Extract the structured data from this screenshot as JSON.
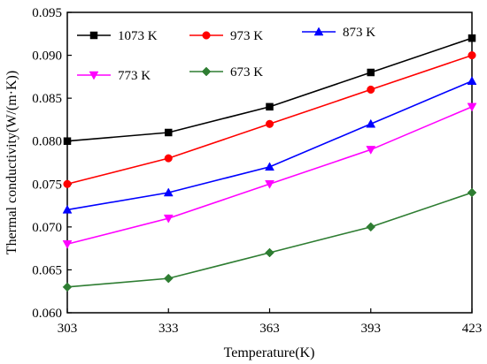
{
  "chart_data": {
    "type": "line",
    "xlabel": "Temperature(K)",
    "ylabel": "Thermal conductivity(W/(m·K))",
    "x": [
      303,
      333,
      363,
      393,
      423
    ],
    "xticks": [
      "303",
      "333",
      "363",
      "393",
      "423"
    ],
    "xlim": [
      303,
      423
    ],
    "yticks": [
      "0.060",
      "0.065",
      "0.070",
      "0.075",
      "0.080",
      "0.085",
      "0.090",
      "0.095"
    ],
    "ylim": [
      0.06,
      0.095
    ],
    "grid": false,
    "legend_position": "top",
    "series": [
      {
        "name": "1073 K",
        "color": "#000000",
        "marker": "square",
        "values": [
          0.08,
          0.081,
          0.084,
          0.088,
          0.092
        ]
      },
      {
        "name": "973 K",
        "color": "#ff0000",
        "marker": "circle",
        "values": [
          0.075,
          0.078,
          0.082,
          0.086,
          0.09
        ]
      },
      {
        "name": "873 K",
        "color": "#0000ff",
        "marker": "triangle-up",
        "values": [
          0.072,
          0.074,
          0.077,
          0.082,
          0.087
        ]
      },
      {
        "name": "773 K",
        "color": "#ff00ff",
        "marker": "triangle-down",
        "values": [
          0.068,
          0.071,
          0.075,
          0.079,
          0.084
        ]
      },
      {
        "name": "673 K",
        "color": "#2e7d32",
        "marker": "diamond",
        "values": [
          0.063,
          0.064,
          0.067,
          0.07,
          0.074
        ]
      }
    ]
  }
}
